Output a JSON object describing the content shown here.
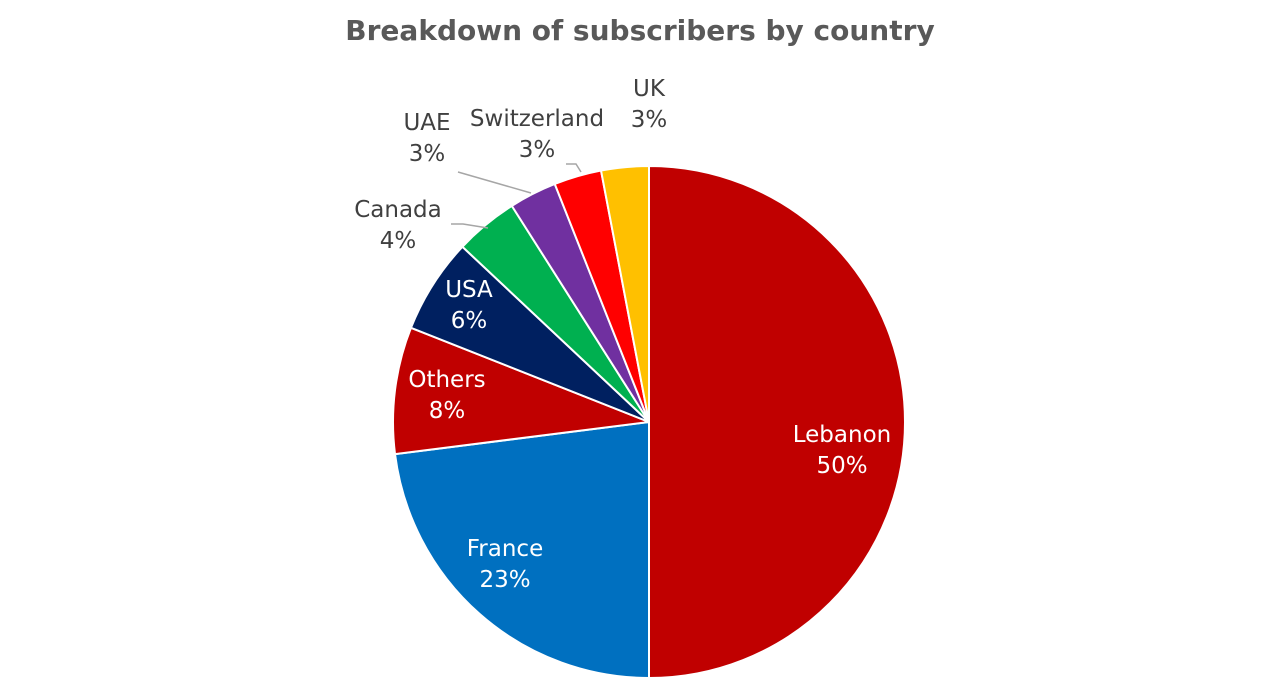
{
  "chart_data": {
    "type": "pie",
    "title": "Breakdown of subscribers by country",
    "start_angle_deg": 0,
    "direction": "clockwise",
    "slices": [
      {
        "label": "Lebanon",
        "value": 50,
        "value_label": "50%",
        "color": "#C00000"
      },
      {
        "label": "France",
        "value": 23,
        "value_label": "23%",
        "color": "#0070C0"
      },
      {
        "label": "Others",
        "value": 8,
        "value_label": "8%",
        "color": "#C00000"
      },
      {
        "label": "USA",
        "value": 6,
        "value_label": "6%",
        "color": "#002060"
      },
      {
        "label": "Canada",
        "value": 4,
        "value_label": "4%",
        "color": "#00B050"
      },
      {
        "label": "UAE",
        "value": 3,
        "value_label": "3%",
        "color": "#7030A0"
      },
      {
        "label": "Switzerland",
        "value": 3,
        "value_label": "3%",
        "color": "#FF0000"
      },
      {
        "label": "UK",
        "value": 3,
        "value_label": "3%",
        "color": "#FFC000"
      }
    ],
    "label_color_inside": "#FFFFFF",
    "label_color_outside": "#404040",
    "leader_line_color": "#A6A6A6"
  }
}
